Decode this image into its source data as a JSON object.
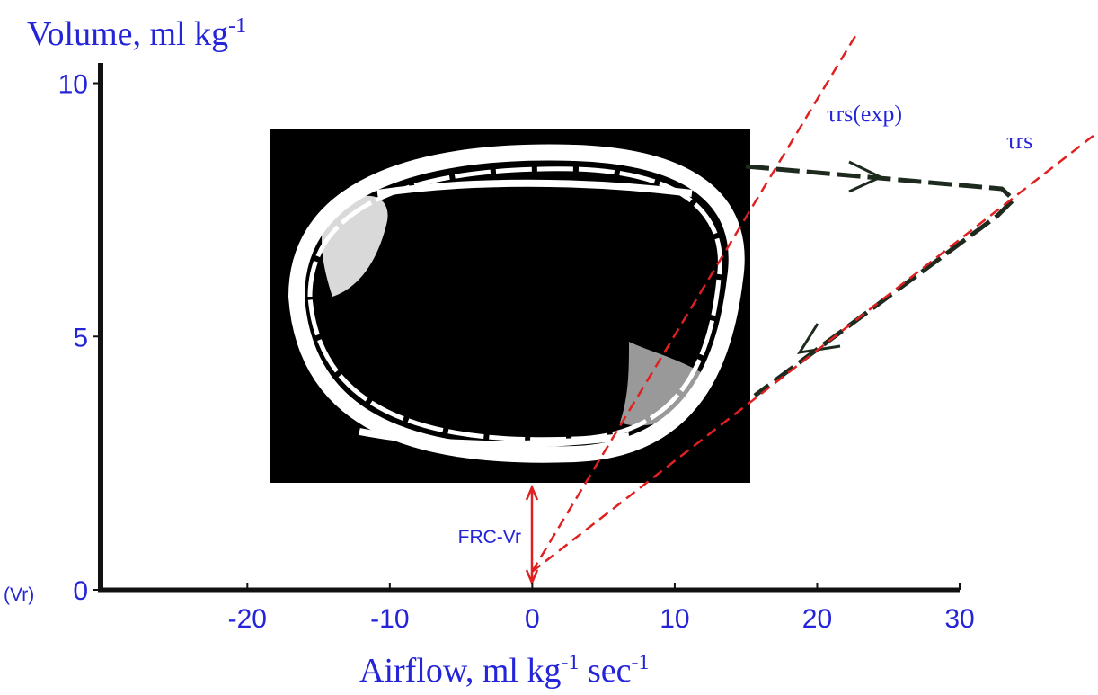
{
  "chart_data": {
    "type": "axes",
    "y_label": [
      "Volume, ml kg",
      "-1"
    ],
    "x_label": [
      "Airflow, ml kg",
      "-1",
      " sec",
      "-1"
    ],
    "xlim": [
      -30.3,
      30
    ],
    "ylim": [
      0,
      10.4
    ],
    "xticks": [
      -20,
      -10,
      0,
      10,
      20,
      30
    ],
    "yticks": [
      0,
      5,
      10
    ],
    "annotations": {
      "vr": "(Vr)",
      "frc": "FRC-Vr",
      "tau_exp": "τrs(exp)",
      "tau": "τrs"
    }
  }
}
